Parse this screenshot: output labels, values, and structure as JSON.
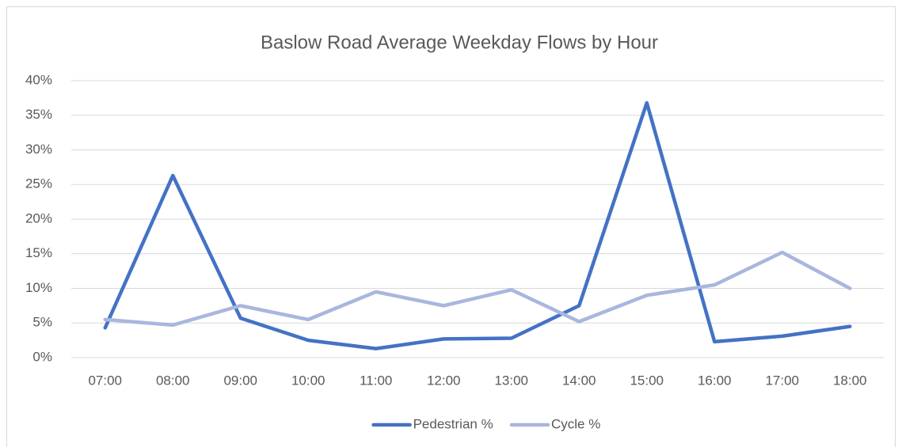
{
  "chart_data": {
    "type": "line",
    "title": "Baslow Road Average Weekday Flows by Hour",
    "categories": [
      "07:00",
      "08:00",
      "09:00",
      "10:00",
      "11:00",
      "12:00",
      "13:00",
      "14:00",
      "15:00",
      "16:00",
      "17:00",
      "18:00"
    ],
    "series": [
      {
        "name": "Pedestrian %",
        "color": "#4472c4",
        "values": [
          4.3,
          26.3,
          5.7,
          2.5,
          1.3,
          2.7,
          2.8,
          7.5,
          36.8,
          2.3,
          3.1,
          4.5
        ]
      },
      {
        "name": "Cycle %",
        "color": "#a9b6de",
        "values": [
          5.5,
          4.7,
          7.5,
          5.5,
          9.5,
          7.5,
          9.8,
          5.2,
          9.0,
          10.5,
          15.2,
          10.0
        ]
      }
    ],
    "ylim": [
      0,
      40
    ],
    "yticks": [
      {
        "value": 0,
        "label": "0%"
      },
      {
        "value": 5,
        "label": "5%"
      },
      {
        "value": 10,
        "label": "10%"
      },
      {
        "value": 15,
        "label": "15%"
      },
      {
        "value": 20,
        "label": "20%"
      },
      {
        "value": 25,
        "label": "25%"
      },
      {
        "value": 30,
        "label": "30%"
      },
      {
        "value": 35,
        "label": "35%"
      },
      {
        "value": 40,
        "label": "40%"
      }
    ],
    "grid": true,
    "legend": "bottom"
  }
}
